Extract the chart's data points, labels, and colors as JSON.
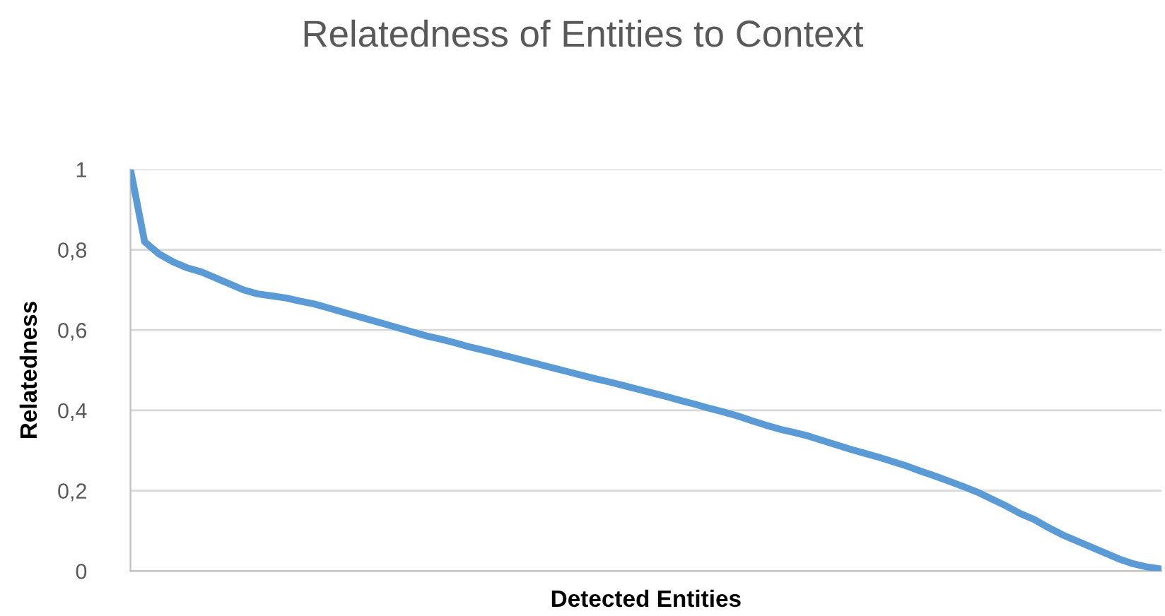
{
  "chart_data": {
    "type": "line",
    "title": "Relatedness of Entities to Context",
    "xlabel": "Detected Entities",
    "ylabel": "Relatedness",
    "categories": [
      null,
      null,
      null,
      null,
      null,
      null,
      null,
      null,
      null,
      null,
      null,
      null,
      null,
      null,
      null,
      null,
      null,
      null,
      null,
      null,
      null,
      null,
      null,
      null,
      null,
      null,
      null,
      null,
      null,
      null,
      null,
      null,
      null,
      null,
      null,
      null,
      null,
      null,
      null,
      null,
      null,
      null,
      null,
      null,
      null,
      null,
      null,
      null,
      null,
      null,
      null,
      null,
      null,
      null,
      null,
      null,
      null,
      null,
      null,
      null,
      null,
      null,
      null,
      null,
      null,
      null,
      null,
      null,
      null,
      null,
      null,
      null,
      null,
      null
    ],
    "series": [
      {
        "color": "#5b9bd5",
        "values": [
          1.0,
          0.82,
          0.79,
          0.77,
          0.755,
          0.745,
          0.73,
          0.715,
          0.7,
          0.69,
          0.685,
          0.68,
          0.672,
          0.665,
          0.655,
          0.645,
          0.635,
          0.625,
          0.615,
          0.605,
          0.595,
          0.585,
          0.577,
          0.568,
          0.558,
          0.55,
          0.541,
          0.532,
          0.523,
          0.514,
          0.505,
          0.496,
          0.487,
          0.478,
          0.47,
          0.461,
          0.452,
          0.443,
          0.434,
          0.424,
          0.415,
          0.405,
          0.396,
          0.386,
          0.374,
          0.363,
          0.353,
          0.345,
          0.336,
          0.325,
          0.314,
          0.303,
          0.293,
          0.283,
          0.272,
          0.261,
          0.248,
          0.236,
          0.223,
          0.21,
          0.196,
          0.179,
          0.162,
          0.143,
          0.128,
          0.108,
          0.09,
          0.075,
          0.06,
          0.045,
          0.03,
          0.018,
          0.01,
          0.005
        ]
      }
    ],
    "ylim": [
      0,
      1
    ],
    "yticks": [
      0,
      {
        "value": 0.2,
        "label": "0,2"
      },
      {
        "value": 0.4,
        "label": "0,4"
      },
      {
        "value": 0.6,
        "label": "0,6"
      },
      {
        "value": 0.8,
        "label": "0,8"
      },
      1
    ],
    "grid": "y",
    "line_style": "solid"
  }
}
